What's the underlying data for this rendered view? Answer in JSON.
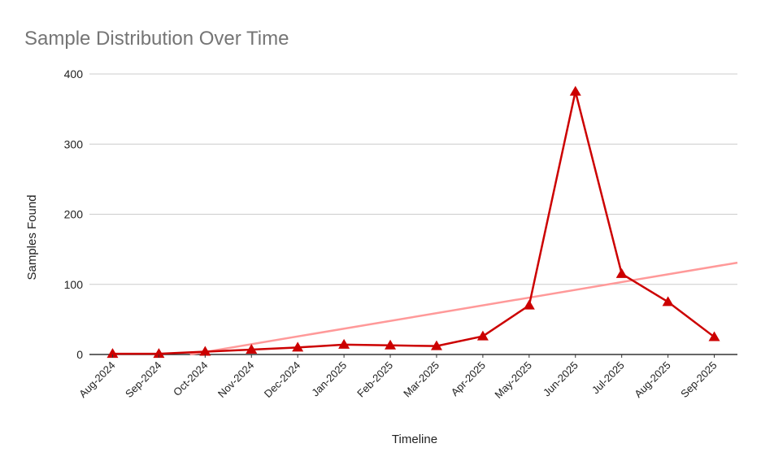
{
  "chart_data": {
    "type": "line",
    "title": "Sample Distribution Over Time",
    "xlabel": "Timeline",
    "ylabel": "Samples Found",
    "categories": [
      "Aug-2024",
      "Sep-2024",
      "Oct-2024",
      "Nov-2024",
      "Dec-2024",
      "Jan-2025",
      "Feb-2025",
      "Mar-2025",
      "Apr-2025",
      "May-2025",
      "Jun-2025",
      "Jul-2025",
      "Aug-2025",
      "Sep-2025"
    ],
    "values": [
      1,
      1,
      4,
      7,
      10,
      14,
      13,
      12,
      26,
      70,
      375,
      115,
      75,
      25
    ],
    "ylim": [
      0,
      400
    ],
    "yticks": [
      "0",
      "100",
      "200",
      "300",
      "400"
    ],
    "grid": true,
    "legend": "none",
    "marker": "triangle",
    "series_color": "#cc0000",
    "trendline": {
      "type": "linear",
      "color": "#ff9999"
    }
  }
}
